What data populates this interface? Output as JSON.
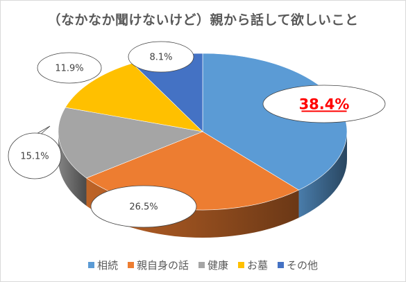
{
  "chart_data": {
    "type": "pie",
    "title": "（なかなか聞けないけど）親から話して欲しいこと",
    "categories": [
      "相続",
      "親自身の話",
      "健康",
      "お墓",
      "その他"
    ],
    "values": [
      38.4,
      26.5,
      15.1,
      11.9,
      8.1
    ],
    "value_labels": [
      "38.4%",
      "26.5%",
      "15.1%",
      "11.9%",
      "8.1%"
    ],
    "colors": [
      "#5b9bd5",
      "#ed7d31",
      "#a5a5a5",
      "#ffc000",
      "#4472c4"
    ],
    "highlight_color": "#ff0000",
    "legend_position": "bottom",
    "style": "3d"
  }
}
